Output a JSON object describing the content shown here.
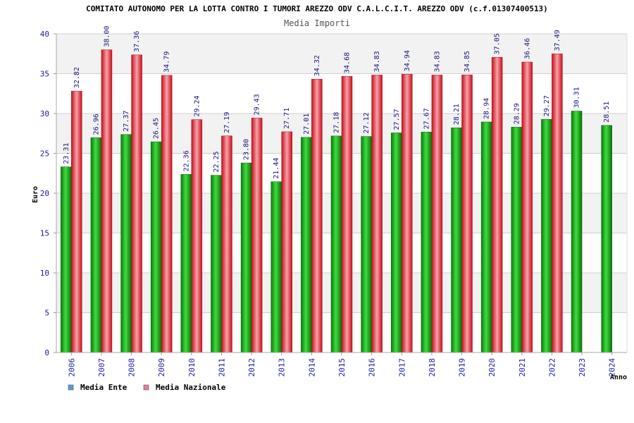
{
  "chart_data": {
    "type": "bar",
    "title": "COMITATO AUTONOMO PER LA LOTTA CONTRO I TUMORI AREZZO ODV C.A.L.C.I.T. AREZZO ODV (c.f.01307400513)",
    "subtitle": "Media Importi",
    "xlabel": "Anno",
    "ylabel": "Euro",
    "ylim": [
      0,
      40
    ],
    "yticks": [
      0,
      5,
      10,
      15,
      20,
      25,
      30,
      35,
      40
    ],
    "grid": true,
    "legend_position": "bottom-left",
    "categories": [
      "2006",
      "2007",
      "2008",
      "2009",
      "2010",
      "2011",
      "2012",
      "2013",
      "2014",
      "2015",
      "2016",
      "2017",
      "2018",
      "2019",
      "2020",
      "2021",
      "2022",
      "2023",
      "2024"
    ],
    "series": [
      {
        "name": "Media Ente",
        "legend_color": "#5b9bd5",
        "color": "#0aa80a",
        "values": [
          23.31,
          26.96,
          27.37,
          26.45,
          22.36,
          22.25,
          23.8,
          21.44,
          27.01,
          27.18,
          27.12,
          27.57,
          27.67,
          28.21,
          28.94,
          28.29,
          29.27,
          30.31,
          28.51
        ],
        "labels": [
          "23.31",
          "26.96",
          "27.37",
          "26.45",
          "22.36",
          "22.25",
          "23.80",
          "21.44",
          "27.01",
          "27.18",
          "27.12",
          "27.57",
          "27.67",
          "28.21",
          "28.94",
          "28.29",
          "29.27",
          "30.31",
          "28.51"
        ]
      },
      {
        "name": "Media Nazionale",
        "legend_color": "#e87aa6",
        "color": "#ee1c24",
        "values": [
          32.82,
          38.0,
          37.36,
          34.79,
          29.24,
          27.19,
          29.43,
          27.71,
          34.32,
          34.68,
          34.83,
          34.94,
          34.83,
          34.85,
          37.05,
          36.46,
          37.49,
          null,
          null
        ],
        "labels": [
          "32.82",
          "38.00",
          "37.36",
          "34.79",
          "29.24",
          "27.19",
          "29.43",
          "27.71",
          "34.32",
          "34.68",
          "34.83",
          "34.94",
          "34.83",
          "34.85",
          "37.05",
          "36.46",
          "37.49",
          null,
          null
        ]
      }
    ],
    "colors": {
      "axis_text": "#1a1aa6",
      "label_text": "#1a1a80",
      "band": "#f2f2f2",
      "grid": "#d0d0d0"
    }
  }
}
